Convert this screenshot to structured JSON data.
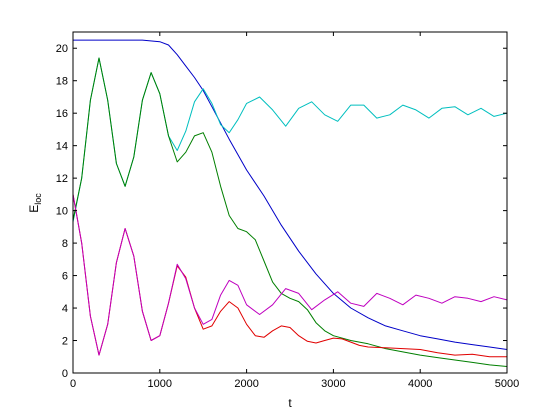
{
  "chart_data": {
    "type": "line",
    "title": "",
    "xlabel": "t",
    "ylabel": {
      "main": "E",
      "sub": "loc"
    },
    "xlim": [
      0,
      5000
    ],
    "ylim": [
      0,
      21
    ],
    "xticks": [
      0,
      1000,
      2000,
      3000,
      4000,
      5000
    ],
    "yticks": [
      0,
      2,
      4,
      6,
      8,
      10,
      12,
      14,
      16,
      18,
      20
    ],
    "grid": false,
    "legend": "none",
    "series": [
      {
        "color": "#0000c8",
        "x": [
          0,
          200,
          400,
          600,
          800,
          1000,
          1100,
          1200,
          1300,
          1400,
          1500,
          1600,
          1800,
          2000,
          2200,
          2400,
          2600,
          2800,
          3000,
          3200,
          3400,
          3600,
          3800,
          4000,
          4200,
          4400,
          4600,
          4800,
          5000
        ],
        "y": [
          20.5,
          20.5,
          20.5,
          20.5,
          20.5,
          20.4,
          20.2,
          19.6,
          18.9,
          18.2,
          17.4,
          16.4,
          14.4,
          12.5,
          10.9,
          9.1,
          7.5,
          6.1,
          4.9,
          4.0,
          3.4,
          2.9,
          2.6,
          2.3,
          2.1,
          1.9,
          1.75,
          1.6,
          1.45
        ]
      },
      {
        "color": "#00bfbf",
        "x": [
          0,
          100,
          200,
          300,
          400,
          500,
          600,
          700,
          800,
          900,
          1000,
          1100,
          1200,
          1300,
          1400,
          1500,
          1600,
          1700,
          1800,
          1900,
          2000,
          2150,
          2300,
          2450,
          2600,
          2750,
          2900,
          3050,
          3200,
          3350,
          3500,
          3650,
          3800,
          3950,
          4100,
          4250,
          4400,
          4550,
          4700,
          4850,
          5000
        ],
        "y": [
          9.3,
          12.0,
          16.8,
          19.4,
          16.8,
          12.9,
          11.5,
          13.3,
          16.8,
          18.5,
          17.2,
          14.6,
          13.7,
          14.9,
          16.7,
          17.5,
          16.6,
          15.3,
          14.8,
          15.6,
          16.6,
          17.0,
          16.2,
          15.2,
          16.3,
          16.7,
          15.9,
          15.5,
          16.5,
          16.5,
          15.7,
          15.9,
          16.5,
          16.2,
          15.7,
          16.3,
          16.4,
          15.9,
          16.3,
          15.8,
          16.0
        ]
      },
      {
        "color": "#007f00",
        "x": [
          0,
          100,
          200,
          300,
          400,
          500,
          600,
          700,
          800,
          900,
          1000,
          1100,
          1200,
          1300,
          1400,
          1500,
          1600,
          1700,
          1800,
          1900,
          2000,
          2100,
          2200,
          2300,
          2400,
          2500,
          2600,
          2700,
          2800,
          2900,
          3000,
          3200,
          3400,
          3600,
          3800,
          4000,
          4200,
          4400,
          4600,
          4800,
          5000
        ],
        "y": [
          9.4,
          12.0,
          16.8,
          19.4,
          16.8,
          12.9,
          11.5,
          13.3,
          16.8,
          18.5,
          17.2,
          14.6,
          13.0,
          13.6,
          14.6,
          14.8,
          13.6,
          11.5,
          9.7,
          8.9,
          8.7,
          8.2,
          6.9,
          5.6,
          4.9,
          4.6,
          4.4,
          3.9,
          3.1,
          2.6,
          2.3,
          2.0,
          1.8,
          1.5,
          1.3,
          1.1,
          0.95,
          0.8,
          0.65,
          0.5,
          0.4
        ]
      },
      {
        "color": "#e00000",
        "x": [
          0,
          100,
          200,
          300,
          400,
          500,
          600,
          700,
          800,
          900,
          1000,
          1100,
          1200,
          1300,
          1400,
          1500,
          1600,
          1700,
          1800,
          1900,
          2000,
          2100,
          2200,
          2300,
          2400,
          2500,
          2600,
          2700,
          2800,
          2900,
          3000,
          3100,
          3200,
          3300,
          3400,
          3600,
          3800,
          4000,
          4200,
          4400,
          4600,
          4800,
          5000
        ],
        "y": [
          11.0,
          8.0,
          3.5,
          1.1,
          3.0,
          6.8,
          8.9,
          7.2,
          3.8,
          2.0,
          2.3,
          4.3,
          6.6,
          5.9,
          4.0,
          2.7,
          2.9,
          3.8,
          4.4,
          4.0,
          3.0,
          2.3,
          2.2,
          2.6,
          2.9,
          2.8,
          2.3,
          1.95,
          1.85,
          2.0,
          2.15,
          2.1,
          1.9,
          1.7,
          1.6,
          1.55,
          1.5,
          1.45,
          1.25,
          1.1,
          1.15,
          1.0,
          1.0
        ]
      },
      {
        "color": "#bf00bf",
        "x": [
          0,
          100,
          200,
          300,
          400,
          500,
          600,
          700,
          800,
          900,
          1000,
          1100,
          1200,
          1300,
          1400,
          1500,
          1600,
          1700,
          1800,
          1900,
          2000,
          2150,
          2300,
          2450,
          2600,
          2750,
          2900,
          3050,
          3200,
          3350,
          3500,
          3650,
          3800,
          3950,
          4100,
          4250,
          4400,
          4550,
          4700,
          4850,
          5000
        ],
        "y": [
          11.0,
          8.0,
          3.5,
          1.1,
          3.0,
          6.8,
          8.9,
          7.2,
          3.8,
          2.0,
          2.3,
          4.3,
          6.7,
          5.8,
          4.0,
          3.0,
          3.3,
          4.8,
          5.7,
          5.4,
          4.2,
          3.6,
          4.2,
          5.2,
          4.9,
          3.9,
          4.5,
          5.0,
          4.3,
          4.1,
          4.9,
          4.6,
          4.2,
          4.8,
          4.6,
          4.3,
          4.7,
          4.6,
          4.4,
          4.7,
          4.5
        ]
      }
    ]
  }
}
